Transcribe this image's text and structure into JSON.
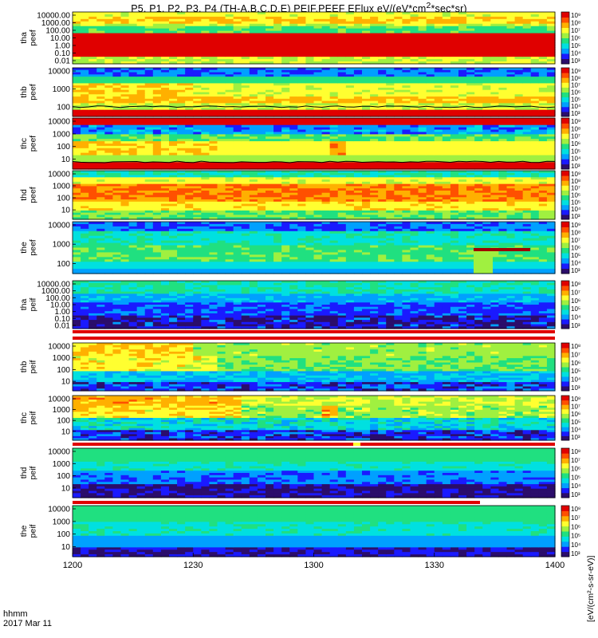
{
  "title": "P5, P1, P2, P3, P4 (TH-A,B,C,D,E) PEIF,PEEF EFlux eV/(eV*cm",
  "title_sup": "2",
  "title_tail": "*sec*sr)",
  "time_axis": {
    "ticks": [
      "1200",
      "1230",
      "1300",
      "1330",
      "1400"
    ],
    "hhmm_label": "hhmm",
    "date_label": "2017 Mar 11"
  },
  "colorbar_unit": "[eV/(cm²-s-sr-eV)]",
  "colors": {
    "saturated": "#e00000",
    "line": "#000000",
    "scale": [
      "#2b0d6b",
      "#1a1aff",
      "#00a0ff",
      "#00e0e0",
      "#20e080",
      "#a0f040",
      "#ffff30",
      "#ffb000",
      "#ff5000",
      "#e00000"
    ]
  },
  "chart_data": {
    "type": "heatmap",
    "x_range": [
      "12:00",
      "14:00"
    ],
    "panels": [
      {
        "probe": "tha",
        "species": "peef",
        "label_line1": "tha",
        "label_line2": "peef",
        "yticks": [
          "10000.00",
          "1000.00",
          "100.00",
          "10.00",
          "1.00",
          "0.10",
          "0.01"
        ],
        "cbar_ticks": [
          "10⁹",
          "10⁸",
          "10⁷",
          "10⁶",
          "10⁵",
          "10⁴",
          "10³"
        ],
        "pattern": "tha_e"
      },
      {
        "probe": "thb",
        "species": "peef",
        "label_line1": "thb",
        "label_line2": "peef",
        "yticks": [
          "10000",
          "1000",
          "100"
        ],
        "cbar_ticks": [
          "10⁹",
          "10⁸",
          "10⁷",
          "10⁶",
          "10⁵",
          "10⁴",
          "10³"
        ],
        "pattern": "thb_e"
      },
      {
        "probe": "thc",
        "species": "peef",
        "label_line1": "thc",
        "label_line2": "peef",
        "yticks": [
          "10000",
          "1000",
          "100",
          "10"
        ],
        "cbar_ticks": [
          "10⁹",
          "10⁸",
          "10⁷",
          "10⁶",
          "10⁵",
          "10⁴",
          "10³"
        ],
        "pattern": "thc_e"
      },
      {
        "probe": "thd",
        "species": "peef",
        "label_line1": "thd",
        "label_line2": "peef",
        "yticks": [
          "10000",
          "1000",
          "100",
          "10"
        ],
        "cbar_ticks": [
          "10⁹",
          "10⁸",
          "10⁷",
          "10⁶",
          "10⁵",
          "10⁴",
          "10³"
        ],
        "pattern": "thd_e"
      },
      {
        "probe": "the",
        "species": "peef",
        "label_line1": "the",
        "label_line2": "peef",
        "yticks": [
          "10000",
          "1000",
          "100"
        ],
        "cbar_ticks": [
          "10⁹",
          "10⁸",
          "10⁷",
          "10⁶",
          "10⁵",
          "10⁴",
          "10³"
        ],
        "pattern": "the_e"
      },
      {
        "probe": "tha",
        "species": "peif",
        "label_line1": "tha",
        "label_line2": "peif",
        "yticks": [
          "10000.00",
          "1000.00",
          "100.00",
          "10.00",
          "1.00",
          "0.10",
          "0.01"
        ],
        "cbar_ticks": [
          "10⁸",
          "10⁷",
          "10⁶",
          "10⁵",
          "10⁴",
          "10³"
        ],
        "pattern": "tha_i"
      },
      {
        "probe": "thb",
        "species": "peif",
        "label_line1": "thb",
        "label_line2": "peif",
        "yticks": [
          "10000",
          "1000",
          "100",
          "10"
        ],
        "cbar_ticks": [
          "10⁸",
          "10⁷",
          "10⁶",
          "10⁵",
          "10⁴",
          "10³"
        ],
        "pattern": "thb_i"
      },
      {
        "probe": "thc",
        "species": "peif",
        "label_line1": "thc",
        "label_line2": "peif",
        "yticks": [
          "10000",
          "1000",
          "100",
          "10"
        ],
        "cbar_ticks": [
          "10⁸",
          "10⁷",
          "10⁶",
          "10⁵",
          "10⁴",
          "10³"
        ],
        "pattern": "thc_i"
      },
      {
        "probe": "thd",
        "species": "peif",
        "label_line1": "thd",
        "label_line2": "peif",
        "yticks": [
          "10000",
          "1000",
          "100",
          "10"
        ],
        "cbar_ticks": [
          "10⁸",
          "10⁷",
          "10⁶",
          "10⁵",
          "10⁴",
          "10³"
        ],
        "pattern": "thd_i"
      },
      {
        "probe": "the",
        "species": "peif",
        "label_line1": "the",
        "label_line2": "peif",
        "yticks": [
          "10000",
          "1000",
          "100",
          "10"
        ],
        "cbar_ticks": [
          "10⁸",
          "10⁷",
          "10⁶",
          "10⁵",
          "10⁴",
          "10³"
        ],
        "pattern": "the_i"
      }
    ]
  }
}
